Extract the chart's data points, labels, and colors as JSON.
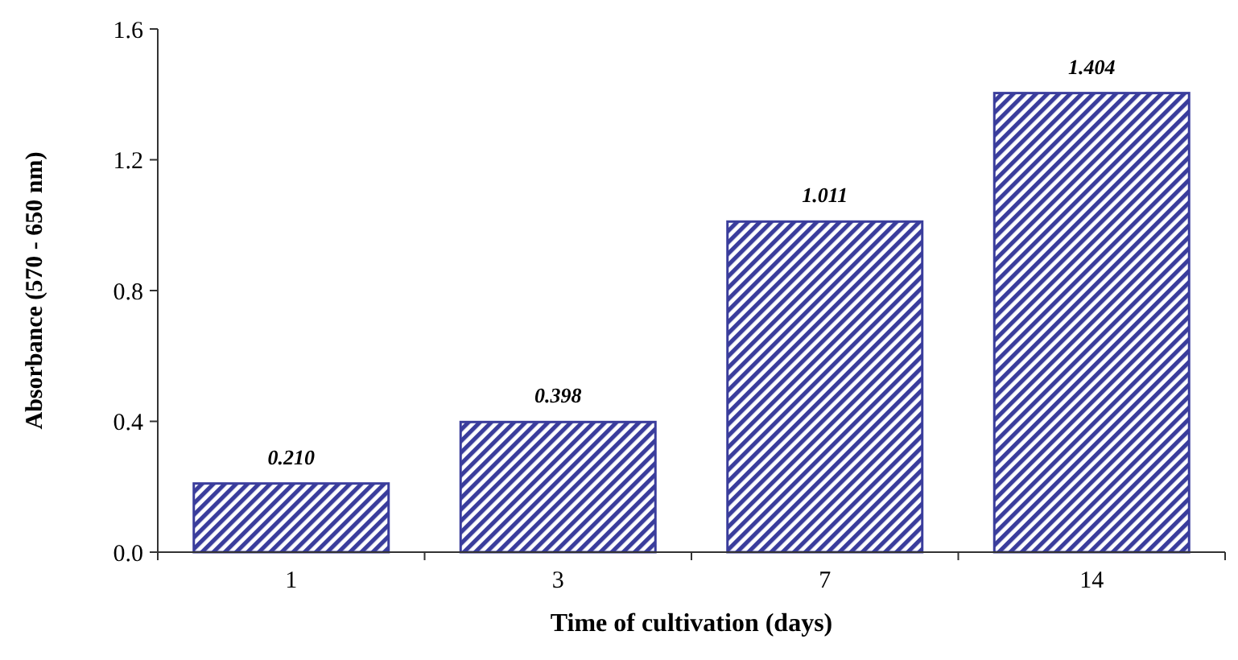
{
  "chart_data": {
    "type": "bar",
    "xlabel": "Time of cultivation (days)",
    "ylabel": "Absorbance (570 - 650 nm)",
    "categories": [
      "1",
      "3",
      "7",
      "14"
    ],
    "values": [
      0.21,
      0.398,
      1.011,
      1.404
    ],
    "value_labels": [
      "0.210",
      "0.398",
      "1.011",
      "1.404"
    ],
    "color": "#3a3d9c",
    "ylim": [
      0,
      1.6
    ],
    "yticks": [
      {
        "value": 0,
        "label": "0.0"
      },
      {
        "value": 0.4,
        "label": "0.4"
      },
      {
        "value": 0.8,
        "label": "0.8"
      },
      {
        "value": 1.2,
        "label": "1.2"
      },
      {
        "value": 1.6,
        "label": "1.6"
      }
    ]
  }
}
